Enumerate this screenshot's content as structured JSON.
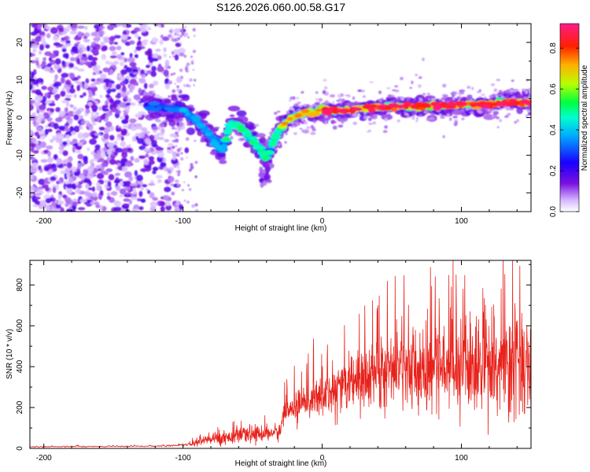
{
  "title": "S126.2026.060.00.58.G17",
  "chart_data": [
    {
      "type": "heatmap",
      "name": "spectrogram",
      "xlabel": "Height of straight line (km)",
      "ylabel": "Frequency (Hz)",
      "xlim": [
        -210,
        150
      ],
      "ylim": [
        -25,
        25
      ],
      "xticks": [
        -200,
        -100,
        0,
        100
      ],
      "yticks": [
        -20,
        -10,
        0,
        10,
        20
      ],
      "colorbar": {
        "label": "Normalized spectral amplitude",
        "range": [
          0.0,
          0.92
        ],
        "ticks": [
          0.0,
          0.2,
          0.4,
          0.6,
          0.8
        ],
        "tick_labels": [
          "0.0",
          "0.2",
          "0.4",
          "0.6",
          "0.8"
        ],
        "colors": [
          "#ffffff",
          "#c9a6ff",
          "#6a00d8",
          "#0000ff",
          "#00c8ff",
          "#00ff7f",
          "#c8ff00",
          "#ffa500",
          "#ff0000",
          "#ff2080"
        ]
      },
      "ridge": {
        "x": [
          -125,
          -110,
          -100,
          -90,
          -80,
          -72,
          -65,
          -55,
          -48,
          -44,
          -40,
          -35,
          -30,
          -25,
          -20,
          -15,
          -10,
          -5,
          0,
          10,
          20,
          30,
          40,
          50,
          60,
          70,
          80,
          90,
          100,
          110,
          120,
          130,
          140,
          150
        ],
        "f": [
          3,
          2.5,
          2,
          -1,
          -5,
          -9,
          -1,
          -4,
          -7,
          -9,
          -11,
          -6,
          -3,
          -1,
          0.5,
          1,
          1.5,
          1.5,
          2,
          2,
          2,
          2.5,
          2.5,
          3,
          3,
          3,
          3,
          3,
          3.5,
          3.5,
          3.5,
          4,
          4,
          4
        ]
      }
    },
    {
      "type": "line",
      "name": "snr",
      "xlabel": "Height of straight line (km)",
      "ylabel": "SNR (10 * v/v)",
      "xlim": [
        -210,
        150
      ],
      "ylim": [
        0,
        920
      ],
      "xticks": [
        -200,
        -100,
        0,
        100
      ],
      "yticks": [
        0,
        200,
        400,
        600,
        800
      ],
      "color": "#e8221b",
      "envelope": {
        "x": [
          -210,
          -140,
          -110,
          -95,
          -90,
          -80,
          -70,
          -60,
          -50,
          -40,
          -30,
          -28,
          -20,
          -10,
          0,
          10,
          20,
          30,
          40,
          50,
          60,
          70,
          80,
          90,
          100,
          110,
          120,
          130,
          140,
          150
        ],
        "mean": [
          8,
          10,
          12,
          18,
          30,
          45,
          55,
          60,
          70,
          75,
          80,
          170,
          200,
          220,
          250,
          290,
          320,
          340,
          360,
          380,
          390,
          400,
          400,
          400,
          400,
          400,
          400,
          400,
          400,
          390
        ],
        "spread": [
          5,
          6,
          8,
          15,
          25,
          35,
          40,
          40,
          45,
          45,
          45,
          60,
          80,
          100,
          120,
          140,
          160,
          180,
          200,
          210,
          220,
          230,
          240,
          250,
          260,
          270,
          280,
          280,
          280,
          280
        ]
      }
    }
  ]
}
